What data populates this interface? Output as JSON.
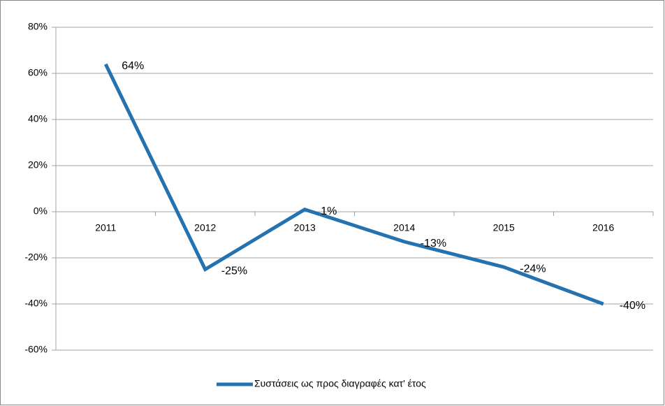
{
  "chart_data": {
    "type": "line",
    "categories": [
      "2011",
      "2012",
      "2013",
      "2014",
      "2015",
      "2016"
    ],
    "series": [
      {
        "name": "Συστάσεις ως προς διαγραφές κατ' έτος",
        "color": "#2472b0",
        "values": [
          64,
          -25,
          1,
          -13,
          -24,
          -40
        ],
        "value_labels": [
          "64%",
          "-25%",
          "1%",
          "-13%",
          "-24%",
          "-40%"
        ]
      }
    ],
    "ylim": [
      -60,
      80
    ],
    "yticks": [
      {
        "value": -60,
        "label": "-60%"
      },
      {
        "value": -40,
        "label": "-40%"
      },
      {
        "value": -20,
        "label": "-20%"
      },
      {
        "value": 0,
        "label": "0%"
      },
      {
        "value": 20,
        "label": "20%"
      },
      {
        "value": 40,
        "label": "40%"
      },
      {
        "value": 60,
        "label": "60%"
      },
      {
        "value": 80,
        "label": "80%"
      }
    ],
    "grid": true,
    "legend": "bottom"
  }
}
